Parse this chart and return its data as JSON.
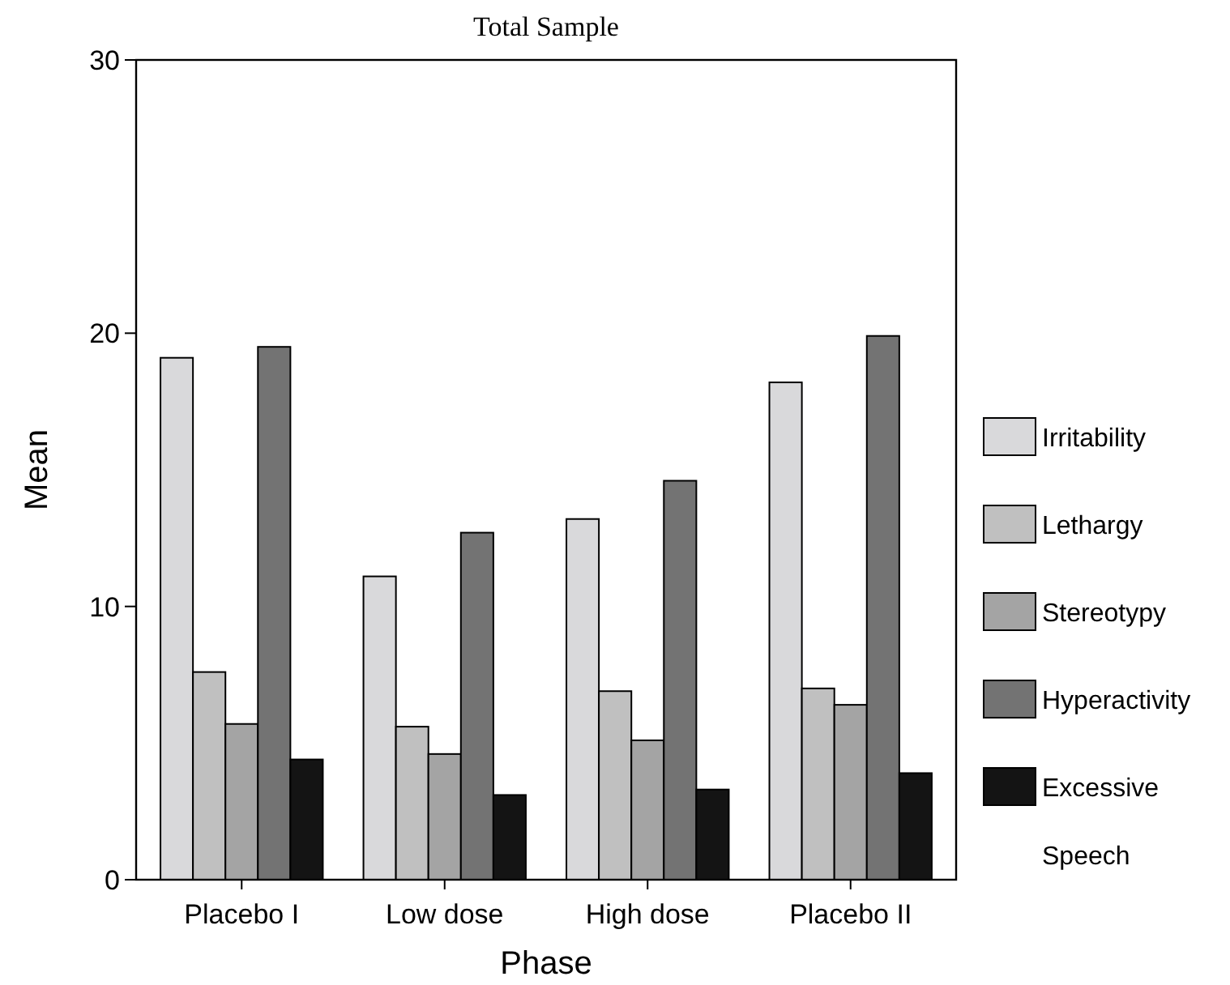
{
  "chart_data": {
    "type": "bar",
    "title": "Total Sample",
    "xlabel": "Phase",
    "ylabel": "Mean",
    "categories": [
      "Placebo I",
      "Low dose",
      "High dose",
      "Placebo II"
    ],
    "series": [
      {
        "name": "Irritability",
        "color": "#d9d9db",
        "values": [
          19.1,
          11.1,
          13.2,
          18.2
        ]
      },
      {
        "name": "Lethargy",
        "color": "#c0c0c0",
        "values": [
          7.6,
          5.6,
          6.9,
          7.0
        ]
      },
      {
        "name": "Stereotypy",
        "color": "#a4a4a4",
        "values": [
          5.7,
          4.6,
          5.1,
          6.4
        ]
      },
      {
        "name": "Hyperactivity",
        "color": "#737373",
        "values": [
          19.5,
          12.7,
          14.6,
          19.9
        ]
      },
      {
        "name": "Excessive Speech",
        "color": "#141414",
        "values": [
          4.4,
          3.1,
          3.3,
          3.9
        ]
      }
    ],
    "ylim": [
      0,
      30
    ],
    "yticks": [
      0,
      10,
      20,
      30
    ],
    "grid": false,
    "legend": "right"
  }
}
